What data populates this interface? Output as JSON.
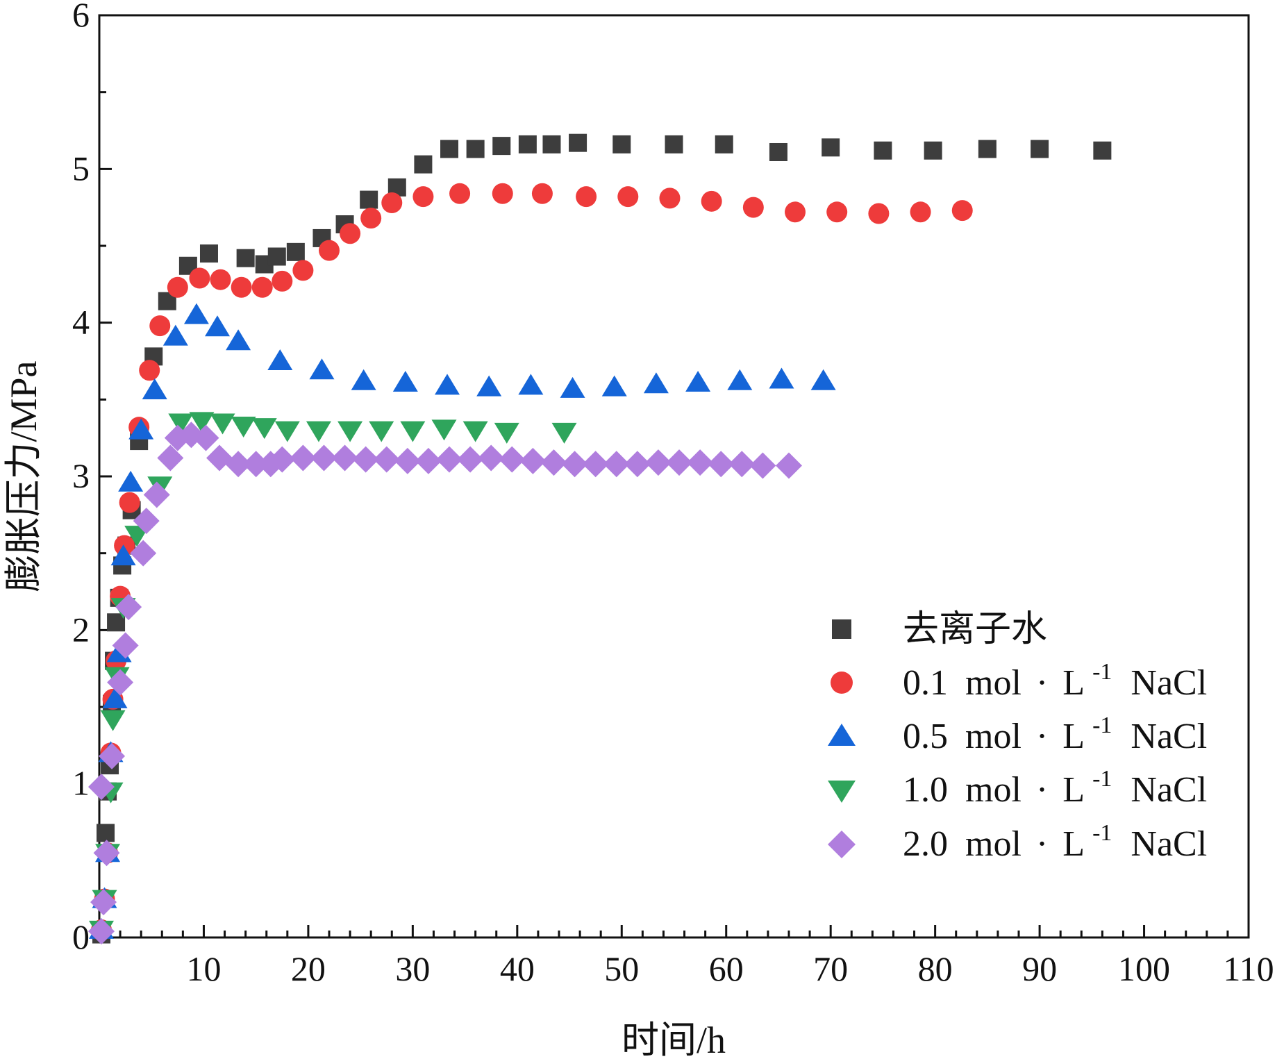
{
  "chart_data": {
    "type": "scatter",
    "title": "",
    "xlabel": "时间/h",
    "ylabel": "膨胀压力/MPa",
    "xlim": [
      0,
      110
    ],
    "ylim": [
      0,
      6
    ],
    "xticks": [
      10,
      20,
      30,
      40,
      50,
      60,
      70,
      80,
      90,
      100,
      110
    ],
    "yticks": [
      0,
      1,
      2,
      3,
      4,
      5,
      6
    ],
    "grid": false,
    "legend_position": "bottom-right",
    "series": [
      {
        "name": "去离子水",
        "legend_parts": {
          "text": "去离子水"
        },
        "marker": "square",
        "color": "#3d3d3d",
        "points": [
          [
            0.2,
            0.02
          ],
          [
            0.6,
            0.68
          ],
          [
            0.8,
            0.95
          ],
          [
            1.0,
            1.12
          ],
          [
            1.2,
            1.52
          ],
          [
            1.4,
            1.8
          ],
          [
            1.6,
            2.05
          ],
          [
            1.9,
            2.21
          ],
          [
            2.2,
            2.42
          ],
          [
            2.6,
            2.55
          ],
          [
            3.1,
            2.78
          ],
          [
            3.8,
            3.23
          ],
          [
            5.2,
            3.78
          ],
          [
            6.5,
            4.14
          ],
          [
            8.5,
            4.37
          ],
          [
            10.5,
            4.45
          ],
          [
            14.0,
            4.42
          ],
          [
            15.8,
            4.38
          ],
          [
            17.0,
            4.43
          ],
          [
            18.8,
            4.46
          ],
          [
            21.3,
            4.55
          ],
          [
            23.5,
            4.64
          ],
          [
            25.8,
            4.8
          ],
          [
            28.5,
            4.88
          ],
          [
            31.0,
            5.03
          ],
          [
            33.5,
            5.13
          ],
          [
            36.0,
            5.13
          ],
          [
            38.5,
            5.15
          ],
          [
            41.0,
            5.16
          ],
          [
            43.3,
            5.16
          ],
          [
            45.8,
            5.17
          ],
          [
            50.0,
            5.16
          ],
          [
            55.0,
            5.16
          ],
          [
            59.8,
            5.16
          ],
          [
            65.0,
            5.11
          ],
          [
            70.0,
            5.14
          ],
          [
            75.0,
            5.12
          ],
          [
            79.8,
            5.12
          ],
          [
            85.0,
            5.13
          ],
          [
            90.0,
            5.13
          ],
          [
            96.0,
            5.12
          ]
        ]
      },
      {
        "name": "0.1 mol·L-1 NaCl",
        "legend_parts": {
          "value": "0.1",
          "unit": "mol",
          "dot": "·",
          "base": "L",
          "sup": "-1",
          "solute": "NaCl"
        },
        "marker": "circle",
        "color": "#ee3b3b",
        "points": [
          [
            0.2,
            0.05
          ],
          [
            0.5,
            0.25
          ],
          [
            0.8,
            0.55
          ],
          [
            1.1,
            1.2
          ],
          [
            1.3,
            1.55
          ],
          [
            1.6,
            1.8
          ],
          [
            2.0,
            2.22
          ],
          [
            2.4,
            2.55
          ],
          [
            2.9,
            2.83
          ],
          [
            3.8,
            3.32
          ],
          [
            4.8,
            3.69
          ],
          [
            5.8,
            3.98
          ],
          [
            7.5,
            4.23
          ],
          [
            9.6,
            4.29
          ],
          [
            11.6,
            4.28
          ],
          [
            13.6,
            4.23
          ],
          [
            15.6,
            4.23
          ],
          [
            17.5,
            4.27
          ],
          [
            19.5,
            4.34
          ],
          [
            22.0,
            4.47
          ],
          [
            24.0,
            4.58
          ],
          [
            26.0,
            4.68
          ],
          [
            28.0,
            4.78
          ],
          [
            31.0,
            4.82
          ],
          [
            34.5,
            4.84
          ],
          [
            38.6,
            4.84
          ],
          [
            42.4,
            4.84
          ],
          [
            46.6,
            4.82
          ],
          [
            50.6,
            4.82
          ],
          [
            54.6,
            4.81
          ],
          [
            58.6,
            4.79
          ],
          [
            62.6,
            4.75
          ],
          [
            66.6,
            4.72
          ],
          [
            70.6,
            4.72
          ],
          [
            74.6,
            4.71
          ],
          [
            78.6,
            4.72
          ],
          [
            82.6,
            4.73
          ]
        ]
      },
      {
        "name": "0.5 mol·L-1 NaCl",
        "legend_parts": {
          "value": "0.5",
          "unit": "mol",
          "dot": "·",
          "base": "L",
          "sup": "-1",
          "solute": "NaCl"
        },
        "marker": "triangle-up",
        "color": "#1565d8",
        "points": [
          [
            0.2,
            0.05
          ],
          [
            0.5,
            0.25
          ],
          [
            0.8,
            0.55
          ],
          [
            1.1,
            1.2
          ],
          [
            1.5,
            1.55
          ],
          [
            1.9,
            1.85
          ],
          [
            2.3,
            2.48
          ],
          [
            3.0,
            2.96
          ],
          [
            4.0,
            3.3
          ],
          [
            5.3,
            3.56
          ],
          [
            7.3,
            3.91
          ],
          [
            9.3,
            4.05
          ],
          [
            11.3,
            3.97
          ],
          [
            13.3,
            3.88
          ],
          [
            17.3,
            3.75
          ],
          [
            21.3,
            3.69
          ],
          [
            25.3,
            3.62
          ],
          [
            29.3,
            3.61
          ],
          [
            33.3,
            3.59
          ],
          [
            37.3,
            3.58
          ],
          [
            41.3,
            3.59
          ],
          [
            45.3,
            3.57
          ],
          [
            49.3,
            3.58
          ],
          [
            53.3,
            3.6
          ],
          [
            57.3,
            3.61
          ],
          [
            61.3,
            3.62
          ],
          [
            65.3,
            3.63
          ],
          [
            69.3,
            3.62
          ]
        ]
      },
      {
        "name": "1.0 mol·L-1 NaCl",
        "legend_parts": {
          "value": "1.0",
          "unit": "mol",
          "dot": "·",
          "base": "L",
          "sup": "-1",
          "solute": "NaCl"
        },
        "marker": "triangle-down",
        "color": "#2fa55c",
        "points": [
          [
            0.2,
            0.05
          ],
          [
            0.5,
            0.25
          ],
          [
            0.8,
            0.55
          ],
          [
            1.1,
            0.95
          ],
          [
            1.3,
            1.42
          ],
          [
            1.7,
            1.7
          ],
          [
            2.3,
            2.15
          ],
          [
            3.6,
            2.62
          ],
          [
            5.8,
            2.94
          ],
          [
            7.8,
            3.35
          ],
          [
            9.8,
            3.36
          ],
          [
            11.8,
            3.35
          ],
          [
            13.8,
            3.33
          ],
          [
            15.8,
            3.32
          ],
          [
            18.0,
            3.3
          ],
          [
            21.0,
            3.3
          ],
          [
            24.0,
            3.3
          ],
          [
            27.0,
            3.3
          ],
          [
            30.0,
            3.3
          ],
          [
            33.0,
            3.31
          ],
          [
            36.0,
            3.3
          ],
          [
            39.0,
            3.29
          ],
          [
            44.5,
            3.29
          ]
        ]
      },
      {
        "name": "2.0 mol·L-1 NaCl",
        "legend_parts": {
          "value": "2.0",
          "unit": "mol",
          "dot": "·",
          "base": "L",
          "sup": "-1",
          "solute": "NaCl"
        },
        "marker": "diamond",
        "color": "#b07ede",
        "points": [
          [
            0.2,
            0.04
          ],
          [
            0.4,
            0.23
          ],
          [
            0.7,
            0.55
          ],
          [
            0.2,
            0.98
          ],
          [
            1.2,
            1.18
          ],
          [
            2.0,
            1.66
          ],
          [
            2.5,
            1.9
          ],
          [
            2.8,
            2.15
          ],
          [
            4.2,
            2.5
          ],
          [
            4.5,
            2.71
          ],
          [
            5.5,
            2.88
          ],
          [
            6.8,
            3.12
          ],
          [
            7.5,
            3.25
          ],
          [
            8.8,
            3.27
          ],
          [
            10.2,
            3.25
          ],
          [
            11.5,
            3.12
          ],
          [
            13.3,
            3.08
          ],
          [
            15.0,
            3.08
          ],
          [
            16.4,
            3.08
          ],
          [
            17.5,
            3.11
          ],
          [
            19.5,
            3.12
          ],
          [
            21.5,
            3.12
          ],
          [
            23.5,
            3.12
          ],
          [
            25.5,
            3.11
          ],
          [
            27.5,
            3.11
          ],
          [
            29.5,
            3.1
          ],
          [
            31.5,
            3.1
          ],
          [
            33.5,
            3.11
          ],
          [
            35.5,
            3.11
          ],
          [
            37.5,
            3.12
          ],
          [
            39.5,
            3.11
          ],
          [
            41.5,
            3.1
          ],
          [
            43.5,
            3.09
          ],
          [
            45.5,
            3.08
          ],
          [
            47.5,
            3.08
          ],
          [
            49.5,
            3.08
          ],
          [
            51.5,
            3.08
          ],
          [
            53.5,
            3.09
          ],
          [
            55.5,
            3.09
          ],
          [
            57.5,
            3.09
          ],
          [
            59.5,
            3.08
          ],
          [
            61.5,
            3.08
          ],
          [
            63.5,
            3.07
          ],
          [
            66.0,
            3.07
          ]
        ]
      }
    ]
  }
}
